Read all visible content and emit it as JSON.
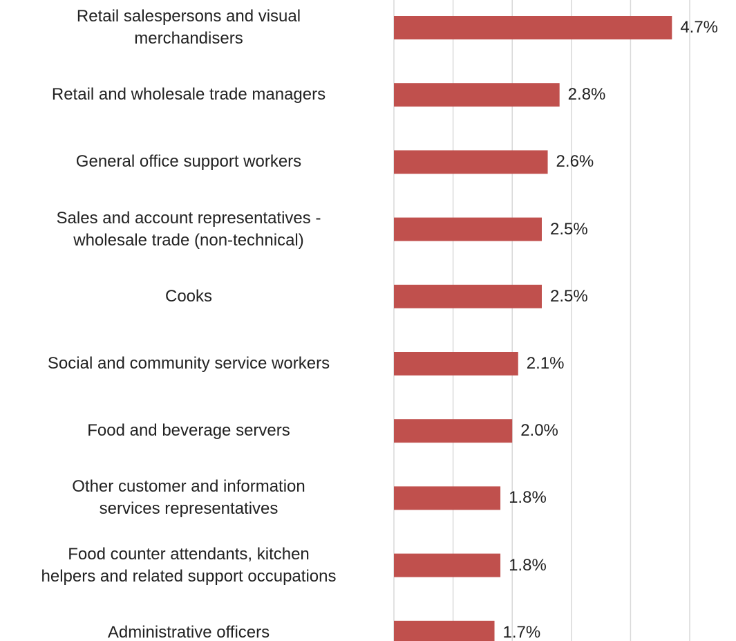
{
  "chart_data": {
    "type": "bar",
    "orientation": "horizontal",
    "categories": [
      "Retail salespersons and visual\nmerchandisers",
      "Retail and wholesale trade managers",
      "General office support workers",
      "Sales and account representatives -\nwholesale trade (non-technical)",
      "Cooks",
      "Social and community service workers",
      "Food and beverage servers",
      "Other customer and information\nservices representatives",
      "Food counter attendants, kitchen\nhelpers and related support occupations",
      "Administrative officers"
    ],
    "values": [
      4.7,
      2.8,
      2.6,
      2.5,
      2.5,
      2.1,
      2.0,
      1.8,
      1.8,
      1.7
    ],
    "value_labels": [
      "4.7%",
      "2.8%",
      "2.6%",
      "2.5%",
      "2.5%",
      "2.1%",
      "2.0%",
      "1.8%",
      "1.8%",
      "1.7%"
    ],
    "color": "#c0504d",
    "xlim": [
      0,
      5
    ],
    "xticks": [
      0,
      1,
      2,
      3,
      4,
      5
    ],
    "grid": true
  }
}
